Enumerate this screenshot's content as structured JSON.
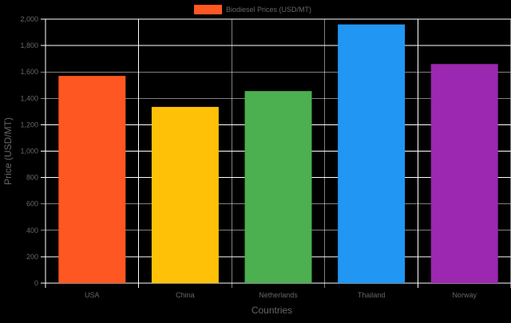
{
  "chart_data": {
    "type": "bar",
    "categories": [
      "USA",
      "China",
      "Netherlands",
      "Thailand",
      "Norway"
    ],
    "series": [
      {
        "name": "Biodiesel Prices (USD/MT)",
        "values": [
          1570,
          1335,
          1455,
          1960,
          1660
        ],
        "colors": [
          "#FF5722",
          "#FFC107",
          "#4CAF50",
          "#2196F3",
          "#9C27B0"
        ]
      }
    ],
    "xlabel": "Countries",
    "ylabel": "Price (USD/MT)",
    "ylim": [
      0,
      2000
    ],
    "yticks": [
      0,
      200,
      400,
      600,
      800,
      1000,
      1200,
      1400,
      1600,
      1800,
      2000
    ],
    "ytick_labels": [
      "0",
      "200",
      "400",
      "600",
      "800",
      "1,000",
      "1,200",
      "1,400",
      "1,600",
      "1,800",
      "2,000"
    ],
    "grid": true,
    "legend_position": "top-center",
    "background": "#000000",
    "grid_color": "#FFFFFF",
    "text_color": "#666666"
  }
}
